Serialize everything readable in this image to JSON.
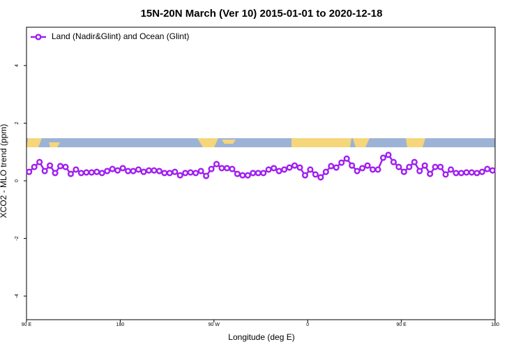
{
  "chart_data": {
    "type": "line",
    "title": "15N-20N March (Ver 10)   2015-01-01 to 2020-12-18",
    "xlabel": "Longitude (deg E)",
    "ylabel": "XCO2 - MLO trend (ppm)",
    "xlim": [
      90,
      540
    ],
    "ylim": [
      -4.82,
      5.33
    ],
    "xticks": [
      {
        "value": 90,
        "label": "90 E"
      },
      180,
      {
        "value": 270,
        "label": "90 W"
      },
      {
        "value": 360,
        "label": "0"
      },
      {
        "value": 450,
        "label": "90 E"
      },
      {
        "value": 540,
        "label": "180"
      }
    ],
    "yticks": [
      -4,
      -2,
      0,
      2,
      4
    ],
    "legend": "top-left",
    "x": [
      92.5,
      97.5,
      102.5,
      107.5,
      112.5,
      117.5,
      122.5,
      127.5,
      132.5,
      137.5,
      142.5,
      147.5,
      152.5,
      157.5,
      162.5,
      167.5,
      172.5,
      177.5,
      182.5,
      187.5,
      192.5,
      197.5,
      202.5,
      207.5,
      212.5,
      217.5,
      222.5,
      227.5,
      232.5,
      237.5,
      242.5,
      247.5,
      252.5,
      257.5,
      262.5,
      267.5,
      272.5,
      277.5,
      282.5,
      287.5,
      292.5,
      297.5,
      302.5,
      307.5,
      312.5,
      317.5,
      322.5,
      327.5,
      332.5,
      337.5,
      342.5,
      347.5,
      352.5,
      357.5,
      362.5,
      367.5,
      372.5,
      377.5,
      382.5,
      387.5,
      392.5,
      397.5,
      402.5,
      407.5,
      412.5,
      417.5,
      422.5,
      427.5,
      432.5,
      437.5,
      442.5,
      447.5,
      452.5,
      457.5,
      462.5,
      467.5,
      472.5,
      477.5,
      482.5,
      487.5,
      492.5,
      497.5,
      502.5,
      507.5,
      512.5,
      517.5,
      522.5,
      527.5,
      532.5,
      537.5
    ],
    "series": [
      {
        "name": "Land (Nadir&Glint) and Ocean (Glint)",
        "color": "#a020f0",
        "values": [
          0.31,
          0.48,
          0.65,
          0.34,
          0.53,
          0.27,
          0.51,
          0.48,
          0.24,
          0.39,
          0.27,
          0.29,
          0.29,
          0.31,
          0.27,
          0.34,
          0.41,
          0.36,
          0.44,
          0.34,
          0.34,
          0.39,
          0.31,
          0.36,
          0.36,
          0.34,
          0.27,
          0.27,
          0.31,
          0.19,
          0.27,
          0.29,
          0.27,
          0.34,
          0.17,
          0.41,
          0.58,
          0.44,
          0.44,
          0.41,
          0.24,
          0.19,
          0.19,
          0.27,
          0.27,
          0.27,
          0.39,
          0.44,
          0.34,
          0.39,
          0.46,
          0.53,
          0.46,
          0.19,
          0.39,
          0.22,
          0.12,
          0.31,
          0.51,
          0.46,
          0.63,
          0.77,
          0.53,
          0.34,
          0.44,
          0.53,
          0.39,
          0.39,
          0.8,
          0.9,
          0.65,
          0.48,
          0.31,
          0.48,
          0.65,
          0.34,
          0.53,
          0.24,
          0.48,
          0.48,
          0.22,
          0.39,
          0.27,
          0.27,
          0.29,
          0.29,
          0.27,
          0.31,
          0.41,
          0.36
        ]
      }
    ]
  }
}
